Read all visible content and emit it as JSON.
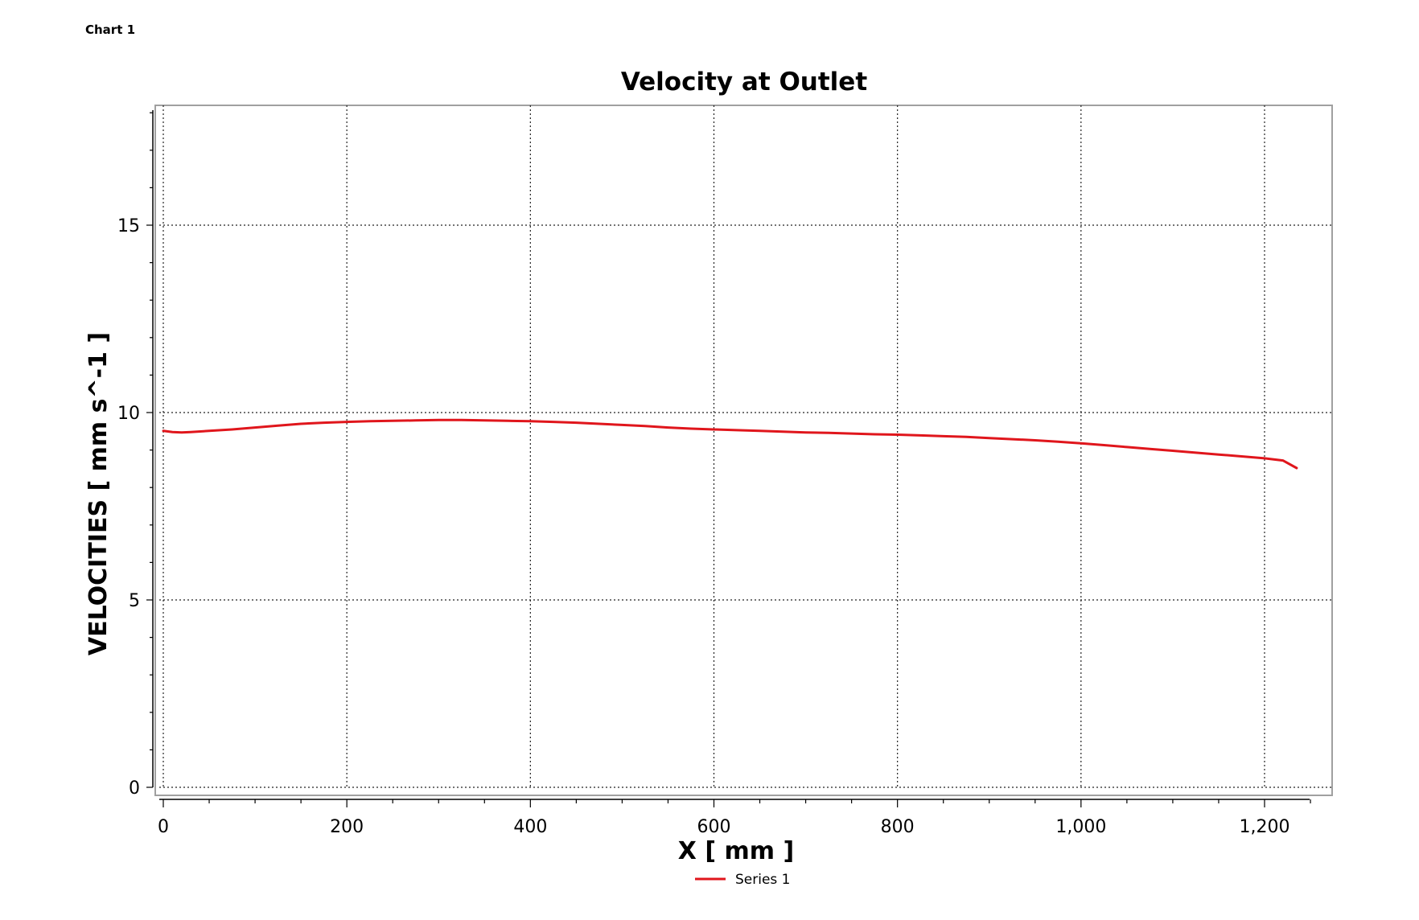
{
  "chart_label": "Chart 1",
  "colors": {
    "series": "#e0161c",
    "axis": "#000000",
    "frame": "#a0a0a0",
    "grid": "#222222"
  },
  "chart_data": {
    "type": "line",
    "title": "Velocity at Outlet",
    "xlabel": "X [ mm ]",
    "ylabel": "VELOCITIES [ mm s^-1 ]",
    "xlim": [
      0,
      1270
    ],
    "ylim": [
      0,
      18
    ],
    "x_ticks": [
      0,
      200,
      400,
      600,
      800,
      1000,
      1200
    ],
    "x_tick_labels": [
      "0",
      "200",
      "400",
      "600",
      "800",
      "1,000",
      "1,200"
    ],
    "y_ticks": [
      0,
      5,
      10,
      15
    ],
    "y_tick_labels": [
      "0",
      "5",
      "10",
      "15"
    ],
    "grid": true,
    "legend_position": "bottom-center",
    "series": [
      {
        "name": "Series 1",
        "color": "#e0161c",
        "x": [
          0,
          10,
          20,
          30,
          50,
          75,
          100,
          125,
          150,
          175,
          200,
          225,
          250,
          275,
          300,
          325,
          350,
          375,
          400,
          425,
          450,
          475,
          500,
          525,
          550,
          575,
          600,
          625,
          650,
          675,
          700,
          725,
          750,
          775,
          800,
          825,
          850,
          875,
          900,
          925,
          950,
          975,
          1000,
          1025,
          1050,
          1075,
          1100,
          1125,
          1150,
          1175,
          1200,
          1220,
          1235
        ],
        "y": [
          9.51,
          9.48,
          9.47,
          9.48,
          9.51,
          9.55,
          9.6,
          9.65,
          9.7,
          9.73,
          9.75,
          9.77,
          9.78,
          9.79,
          9.8,
          9.8,
          9.79,
          9.78,
          9.77,
          9.75,
          9.73,
          9.7,
          9.67,
          9.64,
          9.6,
          9.57,
          9.55,
          9.53,
          9.51,
          9.49,
          9.47,
          9.46,
          9.44,
          9.42,
          9.41,
          9.39,
          9.37,
          9.35,
          9.32,
          9.29,
          9.26,
          9.22,
          9.18,
          9.13,
          9.08,
          9.03,
          8.98,
          8.93,
          8.88,
          8.83,
          8.78,
          8.72,
          8.52
        ]
      }
    ]
  }
}
